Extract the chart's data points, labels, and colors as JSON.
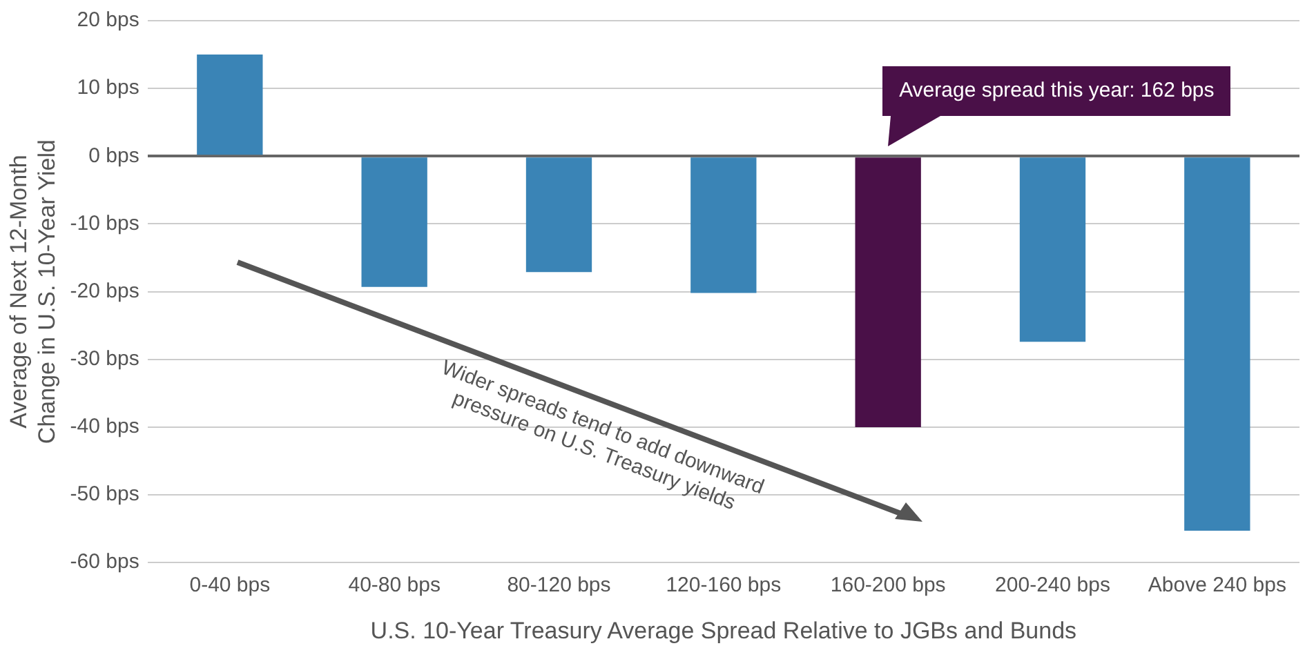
{
  "chart_data": {
    "type": "bar",
    "xlabel": "U.S. 10-Year Treasury Average Spread Relative to JGBs and Bunds",
    "ylabel": "Average of Next 12-Month Change in U.S. 10-Year Yield",
    "categories": [
      "0-40 bps",
      "40-80 bps",
      "80-120 bps",
      "120-160 bps",
      "160-200 bps",
      "200-240 bps",
      "Above 240 bps"
    ],
    "values": [
      15,
      -19.3,
      -17.1,
      -20.2,
      -40,
      -27.4,
      -55.3
    ],
    "colors": [
      "#3a84b6",
      "#3a84b6",
      "#3a84b6",
      "#3a84b6",
      "#4a1048",
      "#3a84b6",
      "#3a84b6"
    ],
    "ylim": [
      -60,
      20
    ],
    "yticks": [
      {
        "value": 20,
        "label": "20 bps"
      },
      {
        "value": 10,
        "label": "10 bps"
      },
      {
        "value": 0,
        "label": "0 bps"
      },
      {
        "value": -10,
        "label": "-10 bps"
      },
      {
        "value": -20,
        "label": "-20 bps"
      },
      {
        "value": -30,
        "label": "-30 bps"
      },
      {
        "value": -40,
        "label": "-40 bps"
      },
      {
        "value": -50,
        "label": "-50 bps"
      },
      {
        "value": -60,
        "label": "-60 bps"
      }
    ],
    "grid": "y",
    "annotations": [
      {
        "text": "Average spread this year: 162 bps",
        "x": "160-200 bps",
        "y": 0
      },
      "Wider spreads tend to add downward pressure on U.S. Treasury yields"
    ]
  }
}
